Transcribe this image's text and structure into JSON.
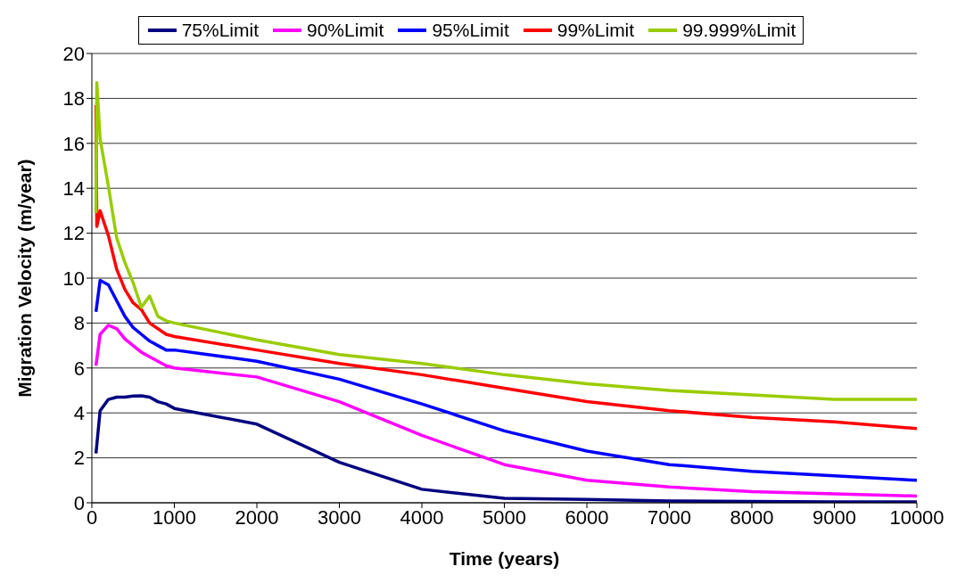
{
  "chart_data": {
    "type": "line",
    "xlabel": "Time (years)",
    "ylabel": "Migration Velocity (m/year)",
    "xlim": [
      0,
      10000
    ],
    "xticks": [
      0,
      1000,
      2000,
      3000,
      4000,
      5000,
      6000,
      7000,
      8000,
      9000,
      10000
    ],
    "ylim": [
      0,
      20
    ],
    "yticks": [
      0,
      2,
      4,
      6,
      8,
      10,
      12,
      14,
      16,
      18,
      20
    ],
    "grid": "y",
    "legend": "top",
    "marker": "none",
    "line_style": "solid",
    "series": [
      {
        "name": "75%Limit",
        "color": "#000080",
        "x": [
          50,
          100,
          200,
          300,
          400,
          500,
          600,
          700,
          800,
          900,
          1000,
          2000,
          3000,
          4000,
          5000,
          6000,
          7000,
          8000,
          9000,
          10000
        ],
        "values": [
          2.2,
          4.1,
          4.6,
          4.7,
          4.7,
          4.75,
          4.76,
          4.7,
          4.5,
          4.4,
          4.2,
          3.5,
          1.8,
          0.6,
          0.2,
          0.15,
          0.08,
          0.06,
          0.04,
          0.04
        ]
      },
      {
        "name": "90%Limit",
        "color": "#ff00ff",
        "x": [
          50,
          100,
          200,
          300,
          400,
          500,
          600,
          700,
          800,
          900,
          1000,
          2000,
          3000,
          4000,
          5000,
          6000,
          7000,
          8000,
          9000,
          10000
        ],
        "values": [
          6.1,
          7.5,
          7.9,
          7.75,
          7.3,
          7.0,
          6.7,
          6.5,
          6.3,
          6.1,
          6.0,
          5.6,
          4.5,
          3.0,
          1.7,
          1.0,
          0.7,
          0.5,
          0.4,
          0.3
        ]
      },
      {
        "name": "95%Limit",
        "color": "#0000ff",
        "x": [
          50,
          100,
          200,
          300,
          400,
          500,
          600,
          700,
          800,
          900,
          1000,
          2000,
          3000,
          4000,
          5000,
          6000,
          7000,
          8000,
          9000,
          10000
        ],
        "values": [
          8.5,
          9.9,
          9.7,
          9.0,
          8.3,
          7.8,
          7.5,
          7.2,
          7.0,
          6.8,
          6.8,
          6.3,
          5.5,
          4.4,
          3.2,
          2.3,
          1.7,
          1.4,
          1.2,
          1.0
        ]
      },
      {
        "name": "99%Limit",
        "color": "#ff0000",
        "x": [
          50,
          60,
          100,
          200,
          300,
          400,
          500,
          600,
          700,
          800,
          900,
          1000,
          2000,
          3000,
          4000,
          5000,
          6000,
          7000,
          8000,
          9000,
          10000
        ],
        "values": [
          17.7,
          12.3,
          13.0,
          11.9,
          10.4,
          9.5,
          8.9,
          8.6,
          8.0,
          7.75,
          7.5,
          7.4,
          6.8,
          6.2,
          5.7,
          5.1,
          4.5,
          4.1,
          3.8,
          3.6,
          3.3
        ]
      },
      {
        "name": "99.999%Limit",
        "color": "#99cc00",
        "x": [
          50,
          60,
          100,
          200,
          300,
          400,
          500,
          600,
          700,
          800,
          900,
          1000,
          2000,
          3000,
          4000,
          5000,
          6000,
          7000,
          8000,
          9000,
          10000
        ],
        "values": [
          12.9,
          18.7,
          16.2,
          14.1,
          11.8,
          10.7,
          9.8,
          8.7,
          9.2,
          8.3,
          8.1,
          8.0,
          7.25,
          6.6,
          6.2,
          5.7,
          5.3,
          5.0,
          4.8,
          4.6,
          4.6
        ]
      }
    ]
  }
}
